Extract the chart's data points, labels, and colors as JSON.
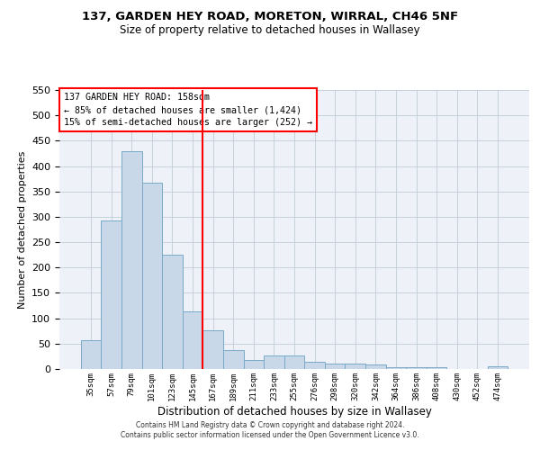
{
  "title": "137, GARDEN HEY ROAD, MORETON, WIRRAL, CH46 5NF",
  "subtitle": "Size of property relative to detached houses in Wallasey",
  "xlabel": "Distribution of detached houses by size in Wallasey",
  "ylabel": "Number of detached properties",
  "bar_color": "#c8d8e8",
  "bar_edge_color": "#7aaac8",
  "grid_color": "#c0ccd8",
  "background_color": "#eef2f8",
  "categories": [
    "35sqm",
    "57sqm",
    "79sqm",
    "101sqm",
    "123sqm",
    "145sqm",
    "167sqm",
    "189sqm",
    "211sqm",
    "233sqm",
    "255sqm",
    "276sqm",
    "298sqm",
    "320sqm",
    "342sqm",
    "364sqm",
    "386sqm",
    "408sqm",
    "430sqm",
    "452sqm",
    "474sqm"
  ],
  "values": [
    57,
    292,
    430,
    368,
    226,
    113,
    76,
    38,
    18,
    27,
    27,
    14,
    10,
    10,
    8,
    4,
    4,
    4,
    0,
    0,
    5
  ],
  "vline_index": 6,
  "annotation_lines": [
    "137 GARDEN HEY ROAD: 158sqm",
    "← 85% of detached houses are smaller (1,424)",
    "15% of semi-detached houses are larger (252) →"
  ],
  "footer_line1": "Contains HM Land Registry data © Crown copyright and database right 2024.",
  "footer_line2": "Contains public sector information licensed under the Open Government Licence v3.0.",
  "ylim": [
    0,
    550
  ],
  "yticks": [
    0,
    50,
    100,
    150,
    200,
    250,
    300,
    350,
    400,
    450,
    500,
    550
  ]
}
